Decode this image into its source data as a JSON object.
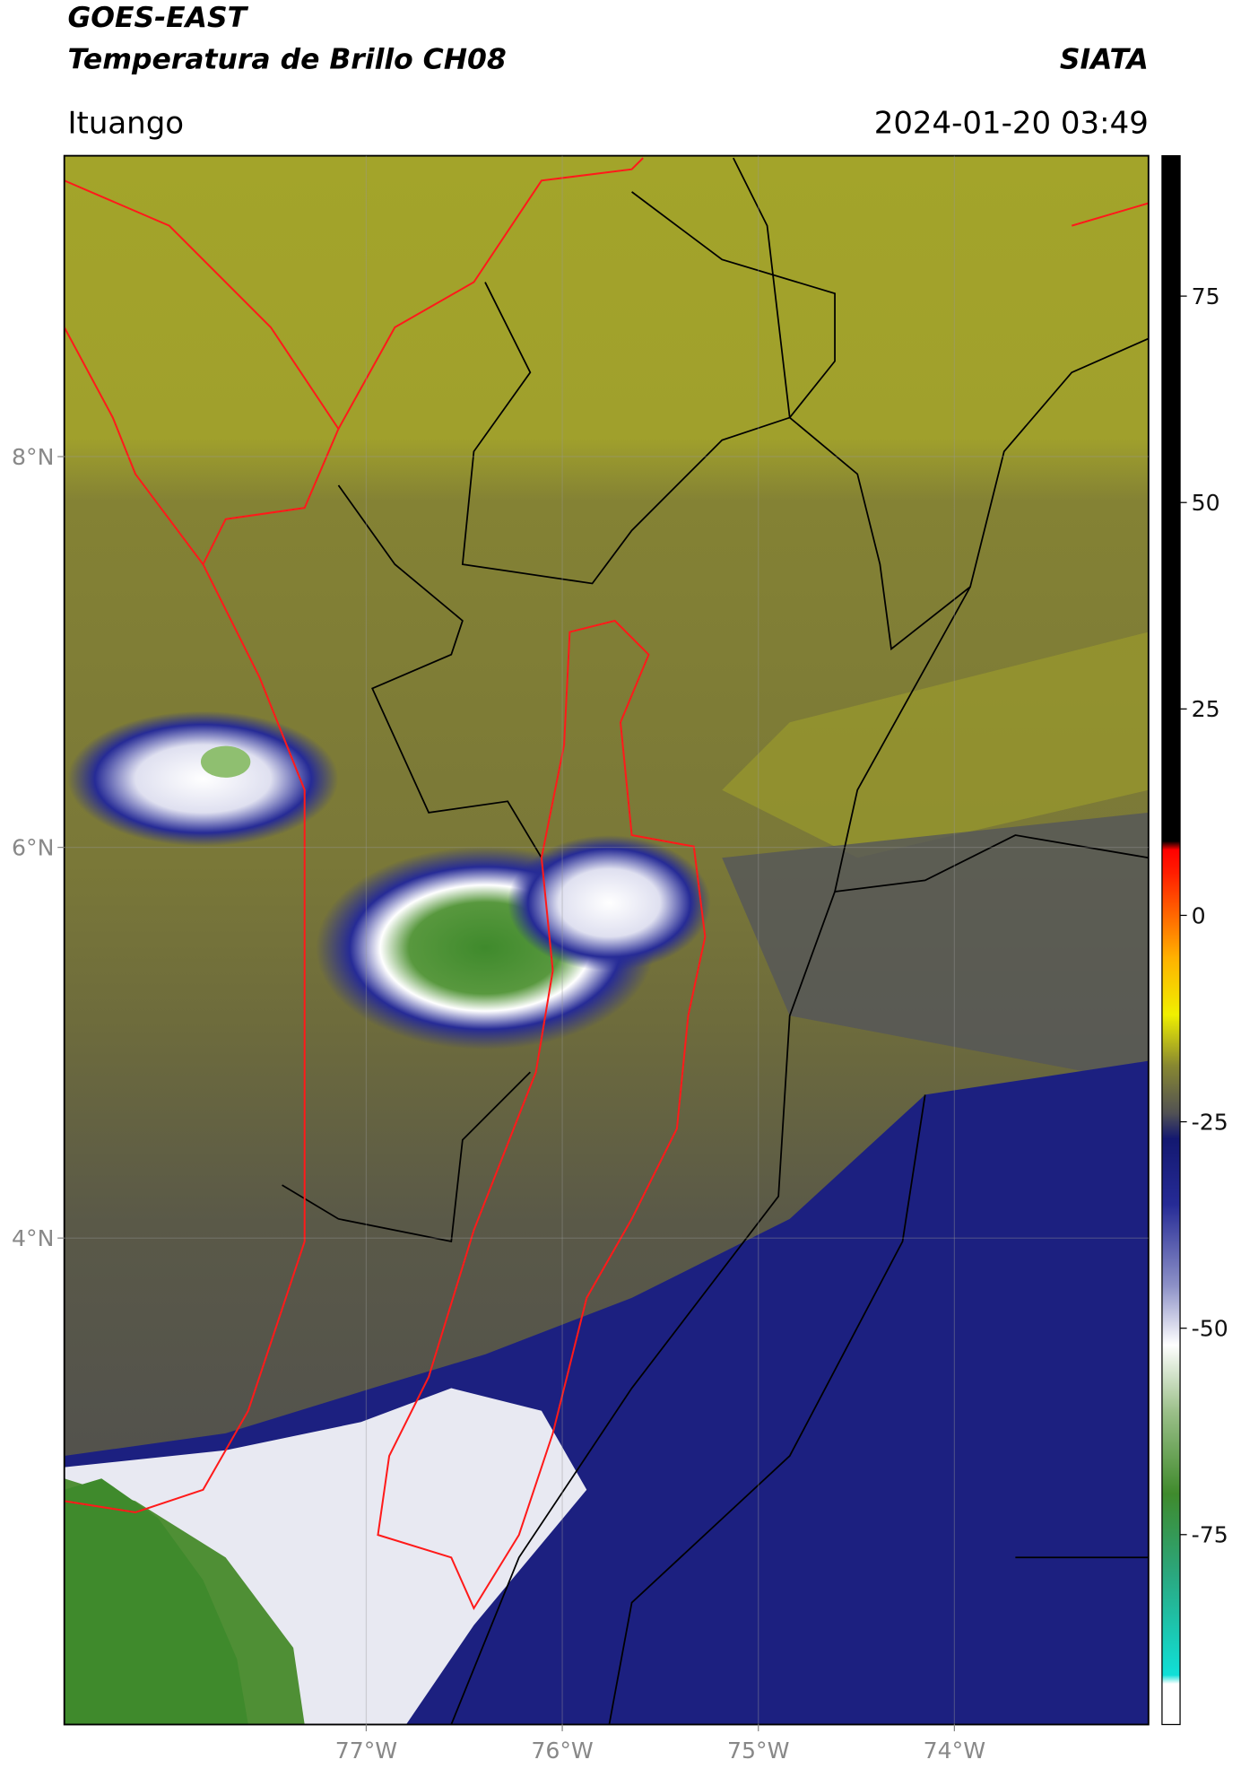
{
  "header": {
    "title": "GOES-EAST",
    "subtitle": "Temperatura de Brillo CH08",
    "brand": "SIATA",
    "region": "Ituango",
    "datetime": "2024-01-20 03:49"
  },
  "map": {
    "lon_lim": [
      -78.54,
      -73.01
    ],
    "lat_lim": [
      1.51,
      9.54
    ],
    "lat_ticks": [
      {
        "value": 8,
        "label": "8°N"
      },
      {
        "value": 6,
        "label": "6°N"
      },
      {
        "value": 4,
        "label": "4°N"
      }
    ],
    "lon_ticks": [
      {
        "value": -77,
        "label": "77°W"
      },
      {
        "value": -76,
        "label": "76°W"
      },
      {
        "value": -75,
        "label": "75°W"
      },
      {
        "value": -74,
        "label": "74°W"
      }
    ],
    "grid": true
  },
  "colorbar": {
    "clim": [
      -98,
      92
    ],
    "ticks": [
      75,
      50,
      25,
      0,
      -25,
      -50,
      -75
    ],
    "colormap": [
      [
        -98,
        "#ffffff"
      ],
      [
        -93,
        "#ffffff"
      ],
      [
        -92,
        "#10e0d8"
      ],
      [
        -80,
        "#2aa880"
      ],
      [
        -70,
        "#3f8a2c"
      ],
      [
        -60,
        "#9cc08a"
      ],
      [
        -52,
        "#ffffff"
      ],
      [
        -45,
        "#8f93c8"
      ],
      [
        -35,
        "#262b96"
      ],
      [
        -27,
        "#131870"
      ],
      [
        -24,
        "#505054"
      ],
      [
        -18,
        "#8a8a30"
      ],
      [
        -12,
        "#f0f000"
      ],
      [
        -5,
        "#ffb000"
      ],
      [
        5,
        "#ff2000"
      ],
      [
        8,
        "#ff0000"
      ],
      [
        9,
        "#000000"
      ],
      [
        92,
        "#000000"
      ]
    ]
  }
}
